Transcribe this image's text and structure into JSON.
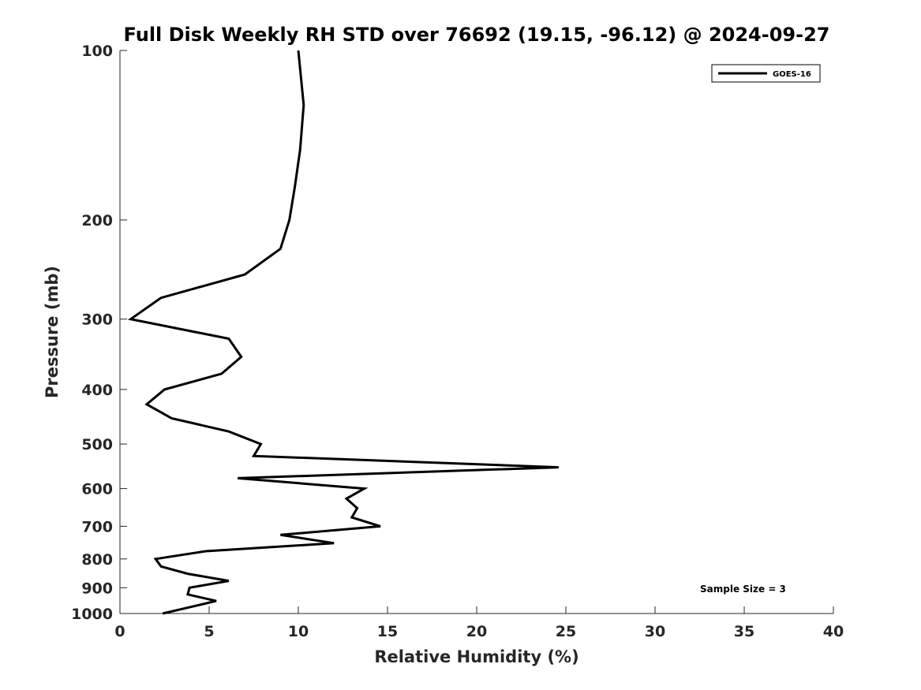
{
  "chart_data": {
    "type": "line",
    "title": "Full Disk Weekly RH STD over 76692 (19.15, -96.12) @ 2024-09-27",
    "xlabel": "Relative Humidity (%)",
    "ylabel": "Pressure (mb)",
    "xlim": [
      0,
      40
    ],
    "ylim": [
      100,
      1000
    ],
    "y_scale": "log",
    "y_reversed": true,
    "x_ticks": [
      0,
      5,
      10,
      15,
      20,
      25,
      30,
      35,
      40
    ],
    "y_ticks": [
      100,
      200,
      300,
      400,
      500,
      600,
      700,
      800,
      900,
      1000
    ],
    "grid": false,
    "legend": "top-right",
    "annotation": "Sample Size = 3",
    "series": [
      {
        "name": "GOES-16",
        "color": "#000000",
        "points": [
          {
            "x": 10.0,
            "p": 100
          },
          {
            "x": 10.3,
            "p": 125
          },
          {
            "x": 10.1,
            "p": 150
          },
          {
            "x": 9.8,
            "p": 175
          },
          {
            "x": 9.5,
            "p": 200
          },
          {
            "x": 9.0,
            "p": 225
          },
          {
            "x": 7.0,
            "p": 250
          },
          {
            "x": 2.3,
            "p": 275
          },
          {
            "x": 0.6,
            "p": 300
          },
          {
            "x": 6.1,
            "p": 325
          },
          {
            "x": 6.8,
            "p": 350
          },
          {
            "x": 5.7,
            "p": 375
          },
          {
            "x": 2.5,
            "p": 400
          },
          {
            "x": 1.5,
            "p": 425
          },
          {
            "x": 2.9,
            "p": 450
          },
          {
            "x": 6.1,
            "p": 475
          },
          {
            "x": 7.9,
            "p": 500
          },
          {
            "x": 7.5,
            "p": 525
          },
          {
            "x": 24.6,
            "p": 550
          },
          {
            "x": 6.6,
            "p": 575
          },
          {
            "x": 13.7,
            "p": 600
          },
          {
            "x": 12.7,
            "p": 625
          },
          {
            "x": 13.3,
            "p": 650
          },
          {
            "x": 13.0,
            "p": 675
          },
          {
            "x": 14.6,
            "p": 700
          },
          {
            "x": 9.0,
            "p": 725
          },
          {
            "x": 12.0,
            "p": 750
          },
          {
            "x": 4.8,
            "p": 775
          },
          {
            "x": 2.0,
            "p": 800
          },
          {
            "x": 2.3,
            "p": 825
          },
          {
            "x": 3.8,
            "p": 850
          },
          {
            "x": 6.1,
            "p": 875
          },
          {
            "x": 3.9,
            "p": 900
          },
          {
            "x": 3.8,
            "p": 925
          },
          {
            "x": 5.4,
            "p": 950
          },
          {
            "x": 3.9,
            "p": 975
          },
          {
            "x": 2.4,
            "p": 1000
          }
        ]
      }
    ]
  }
}
